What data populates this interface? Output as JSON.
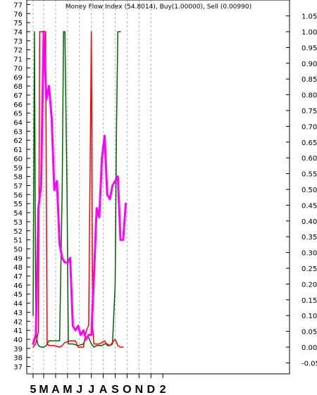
{
  "chart_data": {
    "type": "line",
    "title": "Money Flow Index (54.8014), Buy(1.00000), Sell (0.00990)",
    "x": [
      0,
      0.5,
      1,
      1.5,
      2,
      2.5,
      3,
      3.5,
      4,
      4.5,
      5,
      5.5,
      6,
      6.5,
      7,
      7.5,
      8,
      8.5,
      9,
      9.5,
      10,
      10.5,
      11,
      11.5,
      12,
      12.5,
      13,
      13.5,
      14,
      14.5,
      15,
      15.5,
      16,
      16.5,
      17,
      17.5,
      18,
      18.5,
      19,
      19.5,
      20,
      20.5,
      21,
      21.5,
      22,
      22.5,
      23,
      23.5,
      24,
      24.5,
      25,
      25.5,
      26,
      26.5,
      27,
      27.5,
      28,
      28.5,
      29,
      29.5,
      30,
      30.5,
      31,
      31.5,
      32,
      32.5,
      33,
      33.5,
      34,
      34.5,
      35,
      35.5,
      36,
      36.5,
      37,
      37.5,
      38,
      38.5,
      39,
      39.5,
      40,
      40.5,
      41,
      41.5,
      42,
      42.5,
      43,
      43.5,
      44,
      44.5,
      45,
      45.5,
      46,
      46.5,
      47,
      47.5,
      48,
      48.5,
      49,
      49.5,
      50,
      50.5,
      51,
      51.5,
      52,
      52.5,
      53,
      53.5,
      54,
      54.5,
      55,
      55.5,
      56,
      56.5,
      57,
      57.5,
      58,
      58.5,
      59,
      59.5,
      60,
      60.5,
      61,
      61.5,
      62,
      62.5,
      63,
      63.5,
      64,
      64.5,
      65,
      65.5,
      66,
      66.5,
      67,
      67.5,
      68,
      68.5,
      69,
      69.5,
      70,
      70.5,
      71,
      71.5,
      72,
      72.5,
      73,
      73.5,
      74,
      74.5,
      75,
      75.5,
      76,
      76.5,
      77,
      77.5,
      78,
      78.5,
      79,
      79.5,
      80,
      80.5,
      81,
      81.5,
      82,
      82.5,
      83,
      83.5,
      84,
      84.5,
      85,
      85.5,
      86,
      86.5,
      87,
      87.5,
      88,
      88.5,
      89,
      89.5,
      90,
      90.5,
      91,
      91.5,
      92,
      92.5,
      93,
      93.5,
      94,
      94.5,
      95
    ],
    "left_axis": {
      "min": 37,
      "max": 77,
      "ticks": [
        37,
        38,
        39,
        40,
        41,
        42,
        43,
        44,
        45,
        46,
        47,
        48,
        49,
        50,
        51,
        52,
        53,
        54,
        55,
        56,
        57,
        58,
        59,
        60,
        61,
        62,
        63,
        64,
        65,
        66,
        67,
        68,
        69,
        70,
        71,
        72,
        73,
        74,
        75,
        76,
        77
      ]
    },
    "right_axis": {
      "min": -0.05,
      "max": 1.05,
      "ticks": [
        "-0.05",
        "0.00",
        "0.05",
        "0.10",
        "0.15",
        "0.20",
        "0.25",
        "0.30",
        "0.35",
        "0.40",
        "0.45",
        "0.50",
        "0.55",
        "0.60",
        "0.65",
        "0.70",
        "0.75",
        "0.80",
        "0.85",
        "0.90",
        "0.95",
        "1.00",
        "1.05"
      ]
    },
    "x_labels": [
      {
        "label": "5",
        "x": 0
      },
      {
        "label": "M",
        "x": 4
      },
      {
        "label": "A",
        "x": 8.5
      },
      {
        "label": "M",
        "x": 13
      },
      {
        "label": "J",
        "x": 17.5
      },
      {
        "label": "J",
        "x": 22
      },
      {
        "label": "A",
        "x": 26.5
      },
      {
        "label": "S",
        "x": 31
      },
      {
        "label": "O",
        "x": 35.5
      },
      {
        "label": "N",
        "x": 40
      },
      {
        "label": "D",
        "x": 44.5
      },
      {
        "label": "2",
        "x": 49
      }
    ],
    "vgrid_x": [
      0,
      4,
      8.5,
      13,
      17.5,
      22,
      26.5,
      31,
      35.5,
      40,
      44.5
    ],
    "series": [
      {
        "name": "",
        "axis": "left",
        "color": "#ff00ff",
        "width": 3,
        "points": [
          [
            0,
            39.5
          ],
          [
            1,
            40.5
          ],
          [
            2,
            54.5
          ],
          [
            3,
            57
          ],
          [
            4,
            74
          ],
          [
            5,
            66.5
          ],
          [
            6,
            68
          ],
          [
            7,
            64.5
          ],
          [
            8,
            56.5
          ],
          [
            9,
            57.5
          ],
          [
            10,
            50.5
          ],
          [
            11,
            49
          ],
          [
            12,
            48.5
          ],
          [
            13,
            48.5
          ],
          [
            14,
            49
          ],
          [
            15,
            41.5
          ],
          [
            16,
            41
          ],
          [
            17,
            41.5
          ],
          [
            18,
            40.5
          ],
          [
            19,
            41
          ],
          [
            20,
            40
          ],
          [
            21,
            40.5
          ],
          [
            22,
            40.5
          ],
          [
            23,
            47
          ],
          [
            24,
            54.5
          ],
          [
            25,
            53.5
          ],
          [
            26,
            60
          ],
          [
            27,
            62.5
          ],
          [
            28,
            56
          ],
          [
            29,
            55.5
          ],
          [
            30,
            57
          ],
          [
            31,
            57.5
          ],
          [
            32,
            58
          ],
          [
            33,
            51
          ],
          [
            34,
            51
          ],
          [
            35,
            55
          ]
        ]
      },
      {
        "name": "",
        "axis": "right",
        "color": "#ff0000",
        "width": 1.5,
        "points": [
          [
            0,
            0
          ],
          [
            1,
            0.01
          ],
          [
            2,
            0.05
          ],
          [
            2.5,
            1.0
          ],
          [
            4,
            1.0
          ],
          [
            4.7,
            1.0
          ],
          [
            5.3,
            0.01
          ],
          [
            6,
            0.005
          ],
          [
            8,
            0.005
          ],
          [
            10,
            0.0
          ],
          [
            11,
            0.005
          ],
          [
            12,
            0.015
          ],
          [
            14,
            0.02
          ],
          [
            16,
            0.02
          ],
          [
            17,
            0.0
          ],
          [
            19,
            0.0
          ],
          [
            20,
            0.05
          ],
          [
            21,
            0.07
          ],
          [
            22,
            1.0
          ],
          [
            22.5,
            0.06
          ],
          [
            23,
            0.01
          ],
          [
            25,
            0.01
          ],
          [
            26,
            0.015
          ],
          [
            27,
            0.02
          ],
          [
            28,
            0.005
          ],
          [
            29,
            0.005
          ],
          [
            30,
            0.015
          ],
          [
            31,
            0.025
          ],
          [
            32,
            0.005
          ],
          [
            33,
            0.0
          ],
          [
            34,
            0.0
          ]
        ]
      },
      {
        "name": "",
        "axis": "right",
        "color": "#006400",
        "width": 1.5,
        "points": [
          [
            0,
            0.1
          ],
          [
            0.5,
            1.0
          ],
          [
            1,
            0.05
          ],
          [
            1.5,
            0.02
          ],
          [
            2,
            0.005
          ],
          [
            3,
            0.0
          ],
          [
            4,
            0.0
          ],
          [
            5,
            0.005
          ],
          [
            6,
            0.02
          ],
          [
            7,
            0.02
          ],
          [
            8,
            0.02
          ],
          [
            9,
            0.02
          ],
          [
            10,
            0.02
          ],
          [
            11,
            0.5
          ],
          [
            11.5,
            1.0
          ],
          [
            12,
            1.0
          ],
          [
            12.8,
            0.5
          ],
          [
            13.3,
            0.01
          ],
          [
            15,
            0.01
          ],
          [
            17,
            0.005
          ],
          [
            19,
            0.01
          ],
          [
            20,
            0.03
          ],
          [
            21,
            0.03
          ],
          [
            22,
            0.01
          ],
          [
            23,
            0.0
          ],
          [
            24,
            0.005
          ],
          [
            25,
            0.005
          ],
          [
            26,
            0.005
          ],
          [
            27,
            0.01
          ],
          [
            28,
            0.01
          ],
          [
            29,
            0.005
          ],
          [
            30,
            0.01
          ],
          [
            31,
            0.2
          ],
          [
            31.5,
            0.7
          ],
          [
            32,
            1.0
          ],
          [
            33,
            1.0
          ]
        ]
      }
    ]
  }
}
